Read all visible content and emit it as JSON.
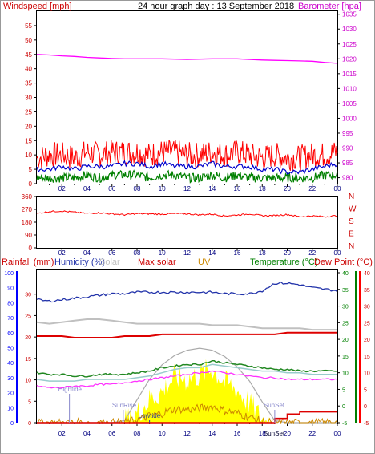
{
  "header": {
    "windspeed_label": "Windspeed [mph]",
    "title": "24 hour graph day : 13 September 2018",
    "barometer_label": "Barometer [hpa]"
  },
  "colors": {
    "wind": "#ff0000",
    "gust_avg": "#0000cc",
    "wind_min": "#008000",
    "barometer": "#ff00ff",
    "direction": "#ff0000",
    "rain": "#0000ff",
    "humidity": "#2233aa",
    "solar": "#c0c0c0",
    "max_solar": "#aaaaaa",
    "uv": "#cc8800",
    "temperature": "#228822",
    "dewpoint": "#dd0000",
    "apparent": "#ff33ff",
    "solar_fill": "#ffff00",
    "tide": "#8888cc",
    "axis": "#000000",
    "left_axis_blue": "#0000ff",
    "right_axis_green": "#008000",
    "right_axis_red": "#ff0000"
  },
  "x_ticks": [
    "02",
    "04",
    "06",
    "08",
    "10",
    "12",
    "14",
    "16",
    "18",
    "20",
    "22",
    "00"
  ],
  "chart_data": [
    {
      "type": "line",
      "title": "24 hour graph day : 13 September 2018",
      "ylabel": "Windspeed [mph]",
      "y2label": "Barometer [hpa]",
      "x": [
        0,
        1,
        2,
        3,
        4,
        5,
        6,
        7,
        8,
        9,
        10,
        11,
        12,
        13,
        14,
        15,
        16,
        17,
        18,
        19,
        20,
        21,
        22,
        23,
        24
      ],
      "ylim": [
        0,
        60
      ],
      "y_ticks": [
        0,
        5,
        10,
        15,
        20,
        25,
        30,
        35,
        40,
        45,
        50,
        55
      ],
      "y2lim": [
        978,
        1036
      ],
      "y2_ticks": [
        980,
        985,
        990,
        995,
        1000,
        1005,
        1010,
        1015,
        1020,
        1025,
        1030,
        1035
      ],
      "series": [
        {
          "axis": "y",
          "values": [
            9,
            10,
            10,
            9,
            11,
            10,
            11,
            11,
            11,
            10,
            11,
            11,
            10,
            10,
            11,
            10,
            11,
            10,
            9,
            10,
            9,
            9,
            10,
            10,
            11
          ]
        },
        {
          "axis": "y",
          "values": [
            5,
            5,
            6,
            5,
            6,
            6,
            6,
            7,
            7,
            6,
            7,
            6,
            6,
            6,
            7,
            6,
            6,
            6,
            5,
            5,
            4,
            4,
            5,
            6,
            7
          ]
        },
        {
          "axis": "y",
          "values": [
            2,
            2,
            2,
            2,
            3,
            2,
            3,
            3,
            3,
            2,
            3,
            3,
            2,
            2,
            3,
            2,
            3,
            2,
            2,
            2,
            2,
            2,
            2,
            3,
            3
          ]
        },
        {
          "axis": "y2",
          "values": [
            1021.5,
            1021.3,
            1021,
            1020.8,
            1020.5,
            1020.3,
            1020.1,
            1020,
            1020,
            1020,
            1020,
            1019.9,
            1019.8,
            1019.9,
            1020,
            1020,
            1020,
            1019.8,
            1019.6,
            1019.5,
            1019.4,
            1019.3,
            1019.2,
            1018.8,
            1018.5
          ]
        }
      ]
    },
    {
      "type": "line",
      "x": [
        0,
        1,
        2,
        3,
        4,
        5,
        6,
        7,
        8,
        9,
        10,
        11,
        12,
        13,
        14,
        15,
        16,
        17,
        18,
        19,
        20,
        21,
        22,
        23,
        24
      ],
      "ylim": [
        0,
        360
      ],
      "y_ticks": [
        0,
        90,
        180,
        270,
        360
      ],
      "y2_ticks": [
        "N",
        "W",
        "S",
        "E",
        "N"
      ],
      "series": [
        {
          "values": [
            240,
            255,
            258,
            250,
            242,
            246,
            238,
            232,
            240,
            238,
            236,
            240,
            238,
            232,
            236,
            224,
            230,
            238,
            225,
            226,
            234,
            218,
            224,
            218,
            226
          ]
        }
      ]
    },
    {
      "type": "line",
      "x": [
        0,
        1,
        2,
        3,
        4,
        5,
        6,
        7,
        8,
        9,
        10,
        11,
        12,
        13,
        14,
        15,
        16,
        17,
        18,
        19,
        20,
        21,
        22,
        23,
        24
      ],
      "legend": [
        "Rainfall (mm)",
        "Humidity (%)",
        "Solar",
        "Max solar",
        "UV",
        "Temperature (°C)",
        "Dew Point (°C)"
      ],
      "y_left_outer": {
        "lim": [
          0,
          100
        ],
        "ticks": [
          0,
          10,
          20,
          30,
          40,
          50,
          60,
          70,
          80,
          90,
          100
        ]
      },
      "y_left_inner": {
        "lim": [
          0,
          35
        ],
        "ticks": [
          0,
          5,
          10,
          15,
          20,
          25,
          30
        ]
      },
      "y_right_inner": {
        "lim": [
          -5,
          40
        ],
        "ticks": [
          -5,
          0,
          5,
          10,
          15,
          20,
          25,
          30,
          35,
          40
        ]
      },
      "y_right_outer": {
        "lim": [
          -5,
          40
        ],
        "ticks": [
          -5,
          0,
          5,
          10,
          15,
          20,
          25,
          30,
          35,
          40
        ]
      },
      "annotations": [
        "Hightide",
        "SunRise",
        "Lowtide",
        "SunSet",
        "SunSet"
      ],
      "series": [
        {
          "axis": "humidity",
          "values": [
            82,
            81,
            82,
            83,
            84,
            85,
            86,
            86,
            87,
            87,
            87,
            87,
            87,
            87,
            87,
            86,
            86,
            86,
            88,
            93,
            93,
            92,
            90,
            89,
            88
          ]
        },
        {
          "axis": "humidity",
          "values": [
            67,
            66,
            67,
            68,
            69,
            69,
            68,
            67,
            66,
            66,
            66,
            66,
            66,
            66,
            65,
            65,
            65,
            64,
            63,
            63,
            63,
            63,
            62,
            62,
            62
          ]
        },
        {
          "axis": "temperature",
          "values": [
            21,
            21,
            21,
            20.5,
            20.5,
            20.5,
            20.5,
            21,
            21,
            21,
            21.5,
            21.5,
            21.5,
            21.5,
            21.5,
            21.5,
            21.5,
            21.5,
            21.5,
            21.5,
            22,
            22,
            22,
            22,
            22
          ]
        },
        {
          "axis": "temperature",
          "values": [
            10,
            9.5,
            9.5,
            9,
            9,
            9.5,
            9.5,
            9.5,
            10,
            10.5,
            11.5,
            12,
            12.5,
            12.5,
            13.5,
            13,
            12.5,
            12,
            11.5,
            11,
            11,
            10.5,
            10.5,
            10.5,
            10.5
          ]
        },
        {
          "axis": "temperature",
          "values": [
            8,
            7.5,
            7.5,
            7.5,
            8,
            8,
            8,
            8,
            8.5,
            9,
            10,
            11,
            11.5,
            11.5,
            12.5,
            12,
            11.5,
            11,
            10.5,
            10.5,
            10,
            10,
            9.5,
            9.5,
            9.5
          ]
        },
        {
          "axis": "temperature",
          "values": [
            6,
            5.5,
            5.5,
            6,
            6,
            6.5,
            6.5,
            7,
            7.5,
            8,
            8.5,
            9,
            9.5,
            10,
            10.5,
            10,
            9.5,
            9,
            8.5,
            8.5,
            8,
            8,
            8,
            8,
            8
          ]
        },
        {
          "axis": "solar",
          "values": [
            0,
            0,
            0,
            0,
            0,
            0,
            0,
            0,
            90,
            220,
            300,
            440,
            420,
            460,
            520,
            390,
            310,
            180,
            30,
            0,
            0,
            0,
            0,
            0,
            0
          ]
        },
        {
          "axis": "solar",
          "values": [
            0,
            0,
            0,
            0,
            0,
            0,
            0,
            20,
            220,
            420,
            560,
            650,
            700,
            720,
            700,
            640,
            540,
            400,
            200,
            20,
            0,
            0,
            0,
            0,
            0
          ]
        },
        {
          "axis": "rain",
          "values": [
            0,
            0,
            0,
            0,
            0,
            0,
            0,
            0,
            0,
            0,
            0,
            0,
            0,
            0,
            0,
            0,
            0,
            0,
            0,
            1,
            2,
            2.5,
            2.5,
            2.5,
            2.5
          ]
        }
      ]
    }
  ]
}
